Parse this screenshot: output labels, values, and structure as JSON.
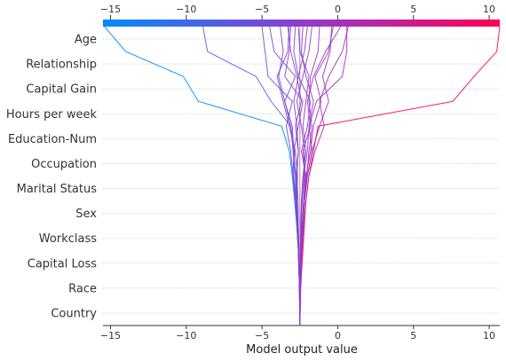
{
  "chart_data": {
    "type": "line",
    "subtype": "shap-decision-plot",
    "title": "",
    "xlabel": "Model output value",
    "ylabel": "",
    "xlim": [
      -15.5,
      10.7
    ],
    "xticks": [
      -15,
      -10,
      -5,
      0,
      5,
      10
    ],
    "base_value": -2.5,
    "features": [
      "Country",
      "Race",
      "Capital Loss",
      "Workclass",
      "Sex",
      "Marital Status",
      "Occupation",
      "Education-Num",
      "Hours per week",
      "Capital Gain",
      "Relationship",
      "Age"
    ],
    "grid": "dotted horizontal lines per feature",
    "colormap": {
      "low": "#008bfb",
      "mid": "#8f3cd0",
      "high": "#ff0052"
    },
    "series": [
      {
        "values": [
          -2.5,
          -2.45,
          -2.52,
          -2.6,
          -2.7,
          -2.85,
          -3.0,
          -3.2,
          -3.7,
          -9.2,
          -10.2,
          -14.0,
          -15.4
        ]
      },
      {
        "values": [
          -2.5,
          -2.48,
          -2.4,
          -2.3,
          -2.2,
          -2.1,
          -1.9,
          -1.6,
          -1.3,
          7.6,
          9.0,
          10.5,
          10.7
        ]
      },
      {
        "values": [
          -2.5,
          -2.5,
          -2.55,
          -2.6,
          -2.65,
          -2.75,
          -2.9,
          -2.85,
          -3.1,
          -4.4,
          -5.4,
          -8.6,
          -8.9
        ]
      },
      {
        "values": [
          -2.5,
          -2.52,
          -2.55,
          -2.6,
          -2.7,
          -2.8,
          -2.95,
          -3.1,
          -3.4,
          -3.0,
          -4.6,
          -4.8,
          -5.0
        ]
      },
      {
        "values": [
          -2.5,
          -2.5,
          -2.45,
          -2.4,
          -2.3,
          -2.2,
          -2.0,
          -1.7,
          -1.9,
          -1.4,
          0.3,
          0.6,
          0.6
        ]
      },
      {
        "values": [
          -2.5,
          -2.5,
          -2.45,
          -2.35,
          -2.25,
          -2.1,
          -1.9,
          -1.5,
          -0.9,
          -1.2,
          -0.6,
          0.3,
          0.7
        ]
      },
      {
        "values": [
          -2.5,
          -2.52,
          -2.55,
          -2.6,
          -2.7,
          -2.75,
          -2.95,
          -2.9,
          -3.0,
          -3.5,
          -2.8,
          -4.2,
          -4.5
        ]
      },
      {
        "values": [
          -2.5,
          -2.5,
          -2.55,
          -2.6,
          -2.65,
          -2.75,
          -2.8,
          -2.9,
          -2.6,
          -2.3,
          -3.5,
          -3.2,
          -3.1
        ]
      },
      {
        "values": [
          -2.5,
          -2.5,
          -2.45,
          -2.4,
          -2.3,
          -2.2,
          -2.05,
          -1.9,
          -1.7,
          -1.9,
          -1.8,
          -1.3,
          -1.2
        ]
      },
      {
        "values": [
          -2.5,
          -2.48,
          -2.42,
          -2.38,
          -2.3,
          -2.25,
          -2.1,
          -2.4,
          -2.0,
          -1.8,
          -2.6,
          -2.2,
          -2.0
        ]
      },
      {
        "values": [
          -2.5,
          -2.5,
          -2.55,
          -2.58,
          -2.62,
          -2.7,
          -2.75,
          -2.6,
          -2.8,
          -2.4,
          -2.7,
          -3.1,
          -3.3
        ]
      },
      {
        "values": [
          -2.5,
          -2.5,
          -2.45,
          -2.42,
          -2.35,
          -2.25,
          -2.15,
          -2.3,
          -1.8,
          -2.0,
          -1.6,
          -0.8,
          0.2
        ]
      },
      {
        "values": [
          -2.5,
          -2.5,
          -2.45,
          -2.4,
          -2.3,
          -2.2,
          -2.0,
          -1.7,
          -1.2,
          -0.6,
          -1.0,
          -0.5,
          -0.4
        ]
      },
      {
        "values": [
          -2.5,
          -2.5,
          -2.47,
          -2.45,
          -2.4,
          -2.35,
          -2.2,
          -2.2,
          -2.4,
          -2.7,
          -2.3,
          -1.9,
          -1.7
        ]
      },
      {
        "values": [
          -2.5,
          -2.5,
          -2.55,
          -2.6,
          -2.65,
          -2.7,
          -2.65,
          -2.8,
          -3.2,
          -3.6,
          -4.0,
          -3.3,
          -3.2
        ]
      },
      {
        "values": [
          -2.5,
          -2.5,
          -2.5,
          -2.45,
          -2.45,
          -2.4,
          -2.3,
          -2.1,
          -2.3,
          -2.1,
          -1.9,
          -2.5,
          -2.6
        ]
      },
      {
        "values": [
          -2.5,
          -2.52,
          -2.55,
          -2.6,
          -2.65,
          -2.7,
          -2.75,
          -2.95,
          -3.1,
          -3.5,
          -3.9,
          -3.6,
          -3.8
        ]
      },
      {
        "values": [
          -2.5,
          -2.5,
          -2.45,
          -2.4,
          -2.35,
          -2.2,
          -2.1,
          -1.8,
          -1.6,
          -1.1,
          -1.5,
          -0.6,
          -0.3
        ]
      },
      {
        "values": [
          -2.5,
          -2.5,
          -2.48,
          -2.45,
          -2.42,
          -2.35,
          -2.25,
          -2.0,
          -1.9,
          -1.6,
          -2.1,
          -2.4,
          -2.3
        ]
      },
      {
        "values": [
          -2.5,
          -2.5,
          -2.52,
          -2.55,
          -2.6,
          -2.62,
          -2.7,
          -2.6,
          -2.7,
          -2.9,
          -2.6,
          -2.9,
          -2.8
        ]
      }
    ]
  }
}
